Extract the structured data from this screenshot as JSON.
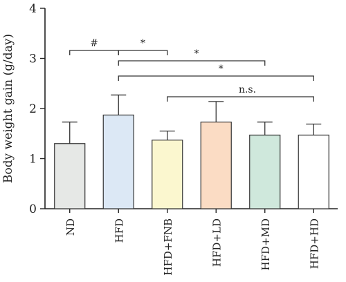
{
  "chart_data": {
    "type": "bar",
    "title": "",
    "xlabel": "",
    "ylabel": "Body weight gain (g/day)",
    "ylim": [
      0,
      4
    ],
    "yticks": [
      0,
      1,
      2,
      3,
      4
    ],
    "grid": false,
    "categories": [
      "ND",
      "HFD",
      "HFD+FNB",
      "HFD+LD",
      "HFD+MD",
      "HFD+HD"
    ],
    "values": [
      1.3,
      1.87,
      1.37,
      1.73,
      1.47,
      1.47
    ],
    "errors": [
      0.43,
      0.4,
      0.18,
      0.41,
      0.26,
      0.22
    ],
    "colors": [
      "#e6e8e6",
      "#dce8f5",
      "#fbf7cf",
      "#fbdcc4",
      "#cfe8dc",
      "#ffffff"
    ],
    "significance": [
      {
        "from": "ND",
        "to": "HFD",
        "label": "#"
      },
      {
        "from": "HFD",
        "to": "HFD+FNB",
        "label": "*"
      },
      {
        "from": "HFD",
        "to": "HFD+MD",
        "label": "*"
      },
      {
        "from": "HFD",
        "to": "HFD+HD",
        "label": "*"
      },
      {
        "from": "HFD+FNB",
        "to": "HFD+HD",
        "label": "n.s."
      }
    ]
  }
}
